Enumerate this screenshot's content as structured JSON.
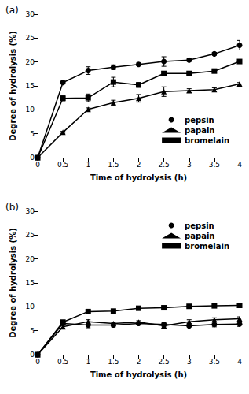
{
  "chart_data": [
    {
      "type": "line",
      "title": "(a)",
      "x_label": "Time of hydrolysis (h)",
      "y_label": "Degree of hydrolysis (%)",
      "x": [
        0,
        0.5,
        1,
        1.5,
        2,
        2.5,
        3,
        3.5,
        4
      ],
      "xlim": [
        0,
        4
      ],
      "xticks": [
        0,
        0.5,
        1,
        1.5,
        2,
        2.5,
        3,
        3.5,
        4
      ],
      "ylim": [
        0,
        30
      ],
      "yticks": [
        0,
        5,
        10,
        15,
        20,
        25,
        30
      ],
      "grid": false,
      "legend": "bottom right",
      "series": [
        {
          "name": "pepsin",
          "color": "#000000",
          "marker": "circle",
          "values": [
            0,
            15.7,
            18.2,
            18.9,
            19.5,
            20.1,
            20.4,
            21.7,
            23.5
          ],
          "errors": [
            0,
            0.3,
            0.8,
            0.5,
            0.3,
            1.0,
            0.3,
            0.3,
            1.0
          ]
        },
        {
          "name": "papain",
          "color": "#000000",
          "marker": "triangle",
          "values": [
            0,
            5.3,
            10.1,
            11.5,
            12.4,
            13.8,
            14.0,
            14.2,
            15.4
          ],
          "errors": [
            0,
            0.2,
            0.3,
            0.5,
            0.8,
            1.0,
            0.4,
            0.4,
            0.3
          ]
        },
        {
          "name": "bromelain",
          "color": "#000000",
          "marker": "square",
          "values": [
            0,
            12.4,
            12.5,
            15.8,
            15.2,
            17.6,
            17.6,
            18.1,
            20.1
          ],
          "errors": [
            0,
            0.5,
            0.8,
            1.0,
            0.5,
            0.4,
            0.2,
            0.3,
            0.3
          ]
        }
      ]
    },
    {
      "type": "line",
      "title": "(b)",
      "x_label": "Time of hydrolysis (h)",
      "y_label": "Degree of hydrolysis (%)",
      "x": [
        0,
        0.5,
        1,
        1.5,
        2,
        2.5,
        3,
        3.5,
        4
      ],
      "xlim": [
        0,
        4
      ],
      "xticks": [
        0,
        0.5,
        1,
        1.5,
        2,
        2.5,
        3,
        3.5,
        4
      ],
      "ylim": [
        0,
        30
      ],
      "yticks": [
        0,
        5,
        10,
        15,
        20,
        25,
        30
      ],
      "grid": false,
      "legend": "top right",
      "series": [
        {
          "name": "pepsin",
          "color": "#000000",
          "marker": "circle",
          "values": [
            0,
            6.5,
            6.2,
            6.2,
            6.5,
            6.3,
            6.0,
            6.3,
            6.4
          ],
          "errors": [
            0,
            0.3,
            0.6,
            0.4,
            0.3,
            0.4,
            0.2,
            0.5,
            0.5
          ]
        },
        {
          "name": "papain",
          "color": "#000000",
          "marker": "triangle",
          "values": [
            0,
            5.8,
            6.9,
            6.5,
            6.8,
            6.0,
            6.9,
            7.3,
            7.5
          ],
          "errors": [
            0,
            0.3,
            0.4,
            0.3,
            0.3,
            0.5,
            0.4,
            0.4,
            0.4
          ]
        },
        {
          "name": "bromelain",
          "color": "#000000",
          "marker": "square",
          "values": [
            0,
            6.8,
            9.0,
            9.1,
            9.7,
            9.8,
            10.1,
            10.2,
            10.3
          ],
          "errors": [
            0,
            0.2,
            0.2,
            0.2,
            0.2,
            0.2,
            0.2,
            0.2,
            0.2
          ]
        }
      ]
    }
  ]
}
